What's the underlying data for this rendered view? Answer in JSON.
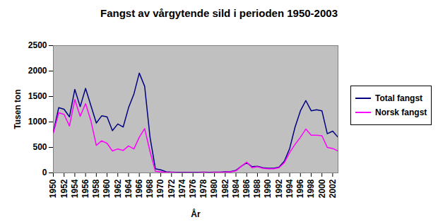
{
  "chart_data": {
    "type": "line",
    "title": "Fangst av vårgytende sild i perioden 1950-2003",
    "x_label": "År",
    "y_label": "Tusen ton",
    "x": [
      1950,
      1951,
      1952,
      1953,
      1954,
      1955,
      1956,
      1957,
      1958,
      1959,
      1960,
      1961,
      1962,
      1963,
      1964,
      1965,
      1966,
      1967,
      1968,
      1969,
      1970,
      1971,
      1972,
      1973,
      1974,
      1975,
      1976,
      1977,
      1978,
      1979,
      1980,
      1981,
      1982,
      1983,
      1984,
      1985,
      1986,
      1987,
      1988,
      1989,
      1990,
      1991,
      1992,
      1993,
      1994,
      1995,
      1996,
      1997,
      1998,
      1999,
      2000,
      2001,
      2002,
      2003
    ],
    "series": [
      {
        "name": "Total fangst",
        "color": "#000080",
        "values": [
          800,
          1280,
          1250,
          1100,
          1640,
          1300,
          1660,
          1320,
          980,
          1120,
          1100,
          830,
          960,
          900,
          1280,
          1550,
          1960,
          1700,
          700,
          80,
          60,
          20,
          15,
          10,
          10,
          10,
          10,
          10,
          15,
          10,
          15,
          15,
          20,
          25,
          50,
          130,
          200,
          120,
          130,
          100,
          90,
          90,
          110,
          230,
          480,
          900,
          1220,
          1420,
          1220,
          1240,
          1220,
          770,
          820,
          700
        ]
      },
      {
        "name": "Norsk fangst",
        "color": "#ff00ff",
        "values": [
          780,
          1180,
          1150,
          920,
          1440,
          1110,
          1360,
          1020,
          540,
          630,
          580,
          430,
          470,
          440,
          530,
          470,
          700,
          870,
          420,
          30,
          20,
          10,
          10,
          5,
          5,
          5,
          5,
          5,
          10,
          5,
          10,
          10,
          15,
          20,
          40,
          130,
          210,
          100,
          120,
          90,
          80,
          80,
          100,
          200,
          400,
          560,
          700,
          860,
          740,
          740,
          730,
          500,
          480,
          430
        ]
      }
    ],
    "xlim": [
      1950,
      2003
    ],
    "xticks": [
      1950,
      1952,
      1954,
      1956,
      1958,
      1960,
      1962,
      1964,
      1966,
      1968,
      1970,
      1972,
      1974,
      1976,
      1978,
      1980,
      1982,
      1984,
      1986,
      1988,
      1990,
      1992,
      1994,
      1996,
      1998,
      2000,
      2002
    ],
    "ylim": [
      0,
      2500
    ],
    "yticks": [
      0,
      500,
      1000,
      1500,
      2000,
      2500
    ],
    "grid": false,
    "legend": "right"
  }
}
